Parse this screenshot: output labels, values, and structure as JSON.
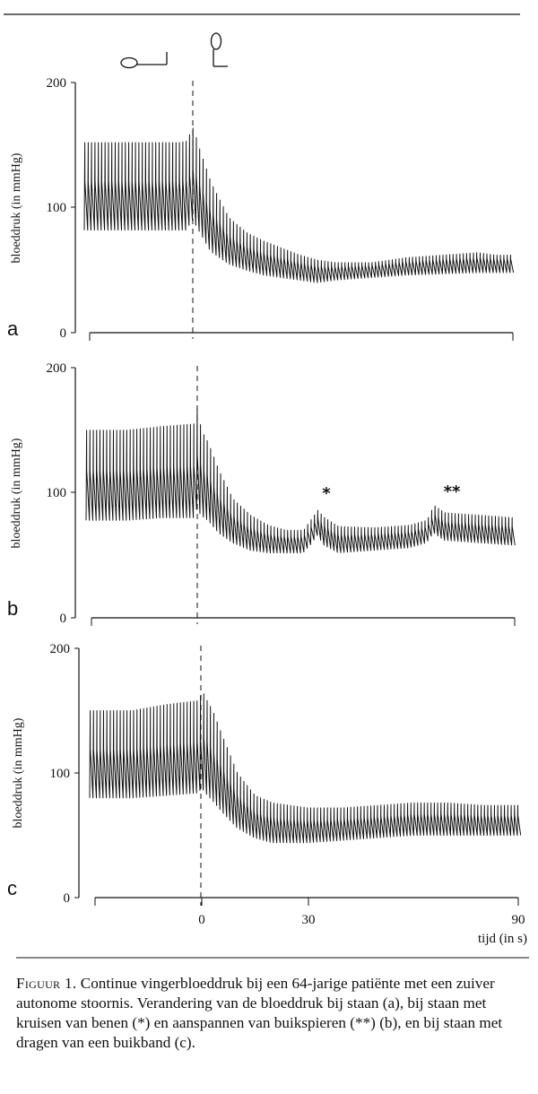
{
  "posture_icons": [
    "lying-icon",
    "standing-icon"
  ],
  "chart_data": [
    {
      "type": "line",
      "panel": "a",
      "ylabel": "bloeddruk (in mmHg)",
      "ylim": [
        0,
        200
      ],
      "yticks": [
        0,
        100,
        200
      ],
      "xlim": [
        -20,
        90
      ],
      "stand_up_time": 0,
      "series": [
        {
          "x": [
            -20,
            -5,
            -4,
            -2,
            0,
            2,
            5,
            10,
            15,
            20,
            30,
            35,
            40,
            50,
            60,
            70,
            80,
            85,
            90
          ],
          "systolic": [
            152,
            152,
            152,
            153,
            164,
            145,
            120,
            92,
            80,
            73,
            62,
            58,
            56,
            56,
            60,
            62,
            64,
            62,
            62
          ],
          "diastolic": [
            82,
            82,
            82,
            82,
            90,
            80,
            65,
            55,
            50,
            46,
            42,
            40,
            42,
            44,
            46,
            47,
            48,
            48,
            48
          ]
        }
      ]
    },
    {
      "type": "line",
      "panel": "b",
      "ylabel": "bloeddruk (in mmHg)",
      "ylim": [
        0,
        200
      ],
      "yticks": [
        0,
        100,
        200
      ],
      "xlim": [
        -20,
        90
      ],
      "stand_up_time": 0,
      "series": [
        {
          "x": [
            -20,
            -10,
            -1,
            0,
            1,
            3,
            6,
            10,
            15,
            20,
            25,
            30,
            32,
            34,
            36,
            40,
            50,
            60,
            65,
            67,
            70,
            80,
            90
          ],
          "systolic": [
            150,
            153,
            155,
            170,
            150,
            140,
            118,
            95,
            82,
            74,
            70,
            70,
            78,
            86,
            80,
            73,
            72,
            74,
            78,
            90,
            84,
            82,
            80
          ],
          "diastolic": [
            78,
            80,
            80,
            88,
            82,
            78,
            68,
            60,
            54,
            52,
            52,
            52,
            58,
            66,
            58,
            52,
            54,
            56,
            60,
            68,
            62,
            60,
            58
          ]
        }
      ],
      "annotations": [
        {
          "label": "*",
          "x": 33,
          "meaning": "kruisen van benen"
        },
        {
          "label": "**",
          "x": 70,
          "meaning": "aanspannen van buikspieren"
        }
      ]
    },
    {
      "type": "line",
      "panel": "c",
      "ylabel": "bloeddruk (in mmHg)",
      "ylim": [
        0,
        200
      ],
      "yticks": [
        0,
        100,
        200
      ],
      "xlim": [
        -20,
        90
      ],
      "xticks": [
        0,
        30,
        90
      ],
      "xlabel": "tijd (in s)",
      "stand_up_time": 0,
      "series": [
        {
          "x": [
            -20,
            -10,
            -1,
            0,
            1,
            3,
            6,
            10,
            15,
            20,
            30,
            40,
            50,
            60,
            70,
            80,
            90
          ],
          "systolic": [
            150,
            155,
            158,
            166,
            160,
            150,
            128,
            100,
            82,
            76,
            72,
            72,
            74,
            76,
            76,
            74,
            74
          ],
          "diastolic": [
            80,
            82,
            84,
            88,
            84,
            78,
            68,
            56,
            48,
            44,
            44,
            46,
            48,
            50,
            50,
            50,
            50
          ]
        }
      ]
    }
  ],
  "caption": {
    "lead": "Figuur 1.",
    "text": " Continue vingerbloeddruk bij een 64-jarige patiënte met een zuiver autonome stoornis. Verandering van de bloeddruk bij staan (a), bij staan met kruisen van benen (*) en aanspannen van buikspieren (**) (b), en bij staan met dragen van een buikband (c)."
  }
}
